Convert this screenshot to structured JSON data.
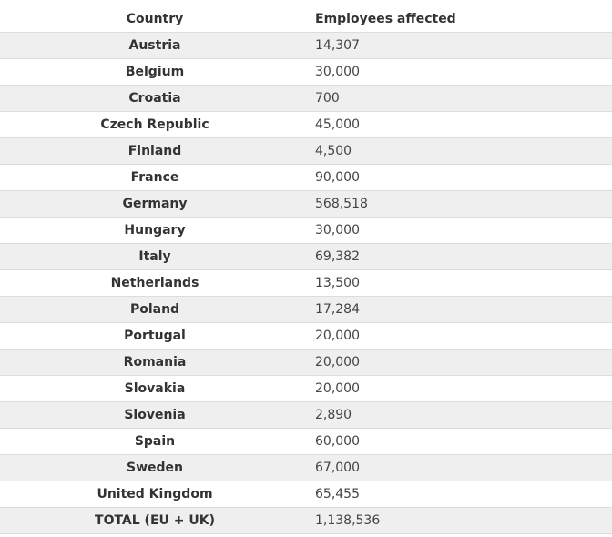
{
  "table": {
    "headers": {
      "country": "Country",
      "employees": "Employees affected"
    },
    "rows": [
      {
        "country": "Austria",
        "employees": "14,307"
      },
      {
        "country": "Belgium",
        "employees": "30,000"
      },
      {
        "country": "Croatia",
        "employees": "700"
      },
      {
        "country": "Czech Republic",
        "employees": "45,000"
      },
      {
        "country": "Finland",
        "employees": "4,500"
      },
      {
        "country": "France",
        "employees": "90,000"
      },
      {
        "country": "Germany",
        "employees": "568,518"
      },
      {
        "country": "Hungary",
        "employees": "30,000"
      },
      {
        "country": "Italy",
        "employees": "69,382"
      },
      {
        "country": "Netherlands",
        "employees": "13,500"
      },
      {
        "country": "Poland",
        "employees": "17,284"
      },
      {
        "country": "Portugal",
        "employees": "20,000"
      },
      {
        "country": "Romania",
        "employees": "20,000"
      },
      {
        "country": "Slovakia",
        "employees": "20,000"
      },
      {
        "country": "Slovenia",
        "employees": "2,890"
      },
      {
        "country": "Spain",
        "employees": "60,000"
      },
      {
        "country": "Sweden",
        "employees": "67,000"
      },
      {
        "country": "United Kingdom",
        "employees": "65,455"
      },
      {
        "country": "TOTAL (EU + UK)",
        "employees": "1,138,536"
      }
    ]
  },
  "colors": {
    "stripe": "#efefef",
    "rule": "#dcdcdc",
    "text": "#333333"
  }
}
